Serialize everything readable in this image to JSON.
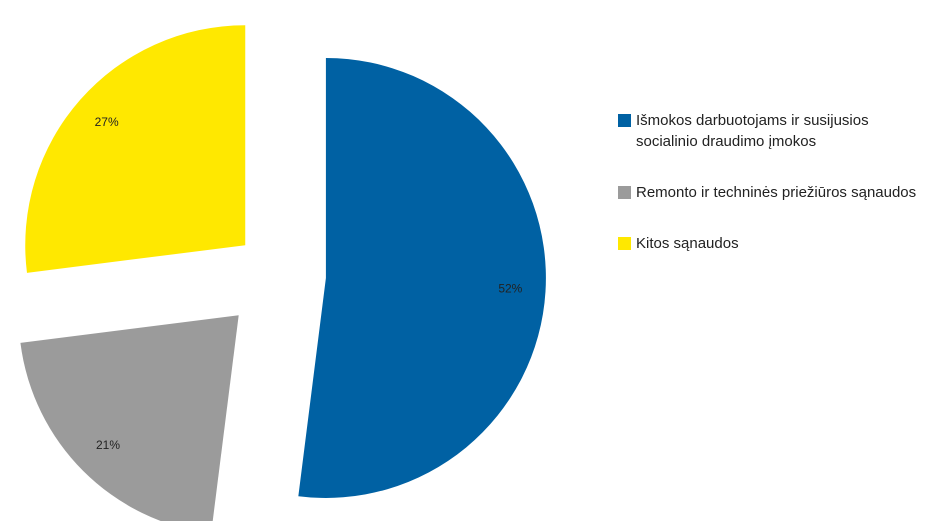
{
  "chart_data": {
    "type": "pie",
    "categories": [
      "Išmokos darbuotojams ir susijusios socialinio draudimo įmokos",
      "Remonto ir techninės priežiūros sąnaudos",
      "Kitos sąnaudos"
    ],
    "values": [
      52,
      21,
      27
    ],
    "value_labels": [
      "52%",
      "21%",
      "27%"
    ],
    "colors": [
      "#0061a3",
      "#9b9b9b",
      "#ffe800"
    ],
    "legend": "right"
  }
}
